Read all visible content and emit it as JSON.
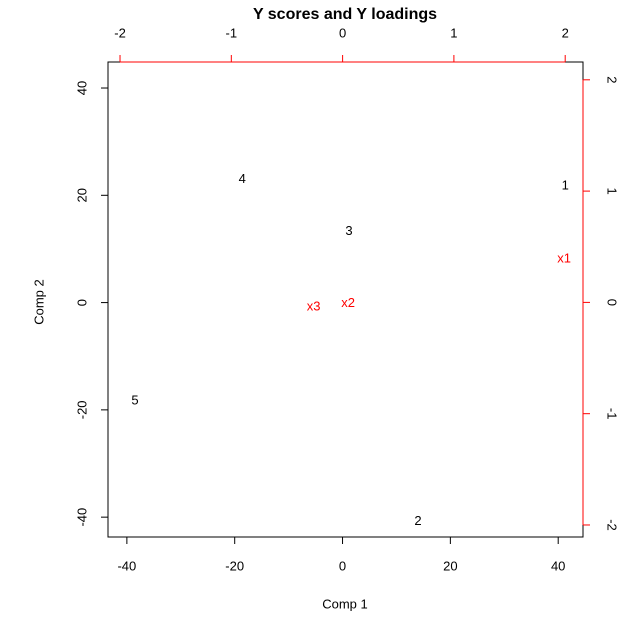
{
  "chart_data": {
    "type": "biplot",
    "title": "Y scores and Y loadings",
    "x_label": "Comp 1",
    "y_label": "Comp 2",
    "xlim": [
      -43.5,
      44.6
    ],
    "ylim": [
      -43.7,
      44.85
    ],
    "xticks": [
      -40,
      -20,
      0,
      20,
      40
    ],
    "yticks": [
      -40,
      -20,
      0,
      20,
      40
    ],
    "x2lim": [
      -2.108,
      2.16
    ],
    "y2lim": [
      -2.108,
      2.16
    ],
    "x2ticks": [
      -2,
      -1,
      0,
      1,
      2
    ],
    "y2ticks": [
      -2,
      -1,
      0,
      1,
      2
    ],
    "secondary_color": "#ff0000",
    "series": [
      {
        "color": "#000000",
        "labels": [
          "1",
          "2",
          "3",
          "4",
          "5"
        ],
        "x": [
          41.3,
          14.0,
          1.2,
          -18.6,
          -38.5
        ],
        "values": [
          21.7,
          -40.8,
          13.2,
          22.9,
          -18.4
        ]
      },
      {
        "color": "#ff0000",
        "axis": "y2",
        "labels": [
          "x1",
          "x2",
          "x3"
        ],
        "x": [
          1.99,
          0.05,
          -0.26
        ],
        "values": [
          0.39,
          -0.01,
          -0.04
        ]
      }
    ]
  }
}
